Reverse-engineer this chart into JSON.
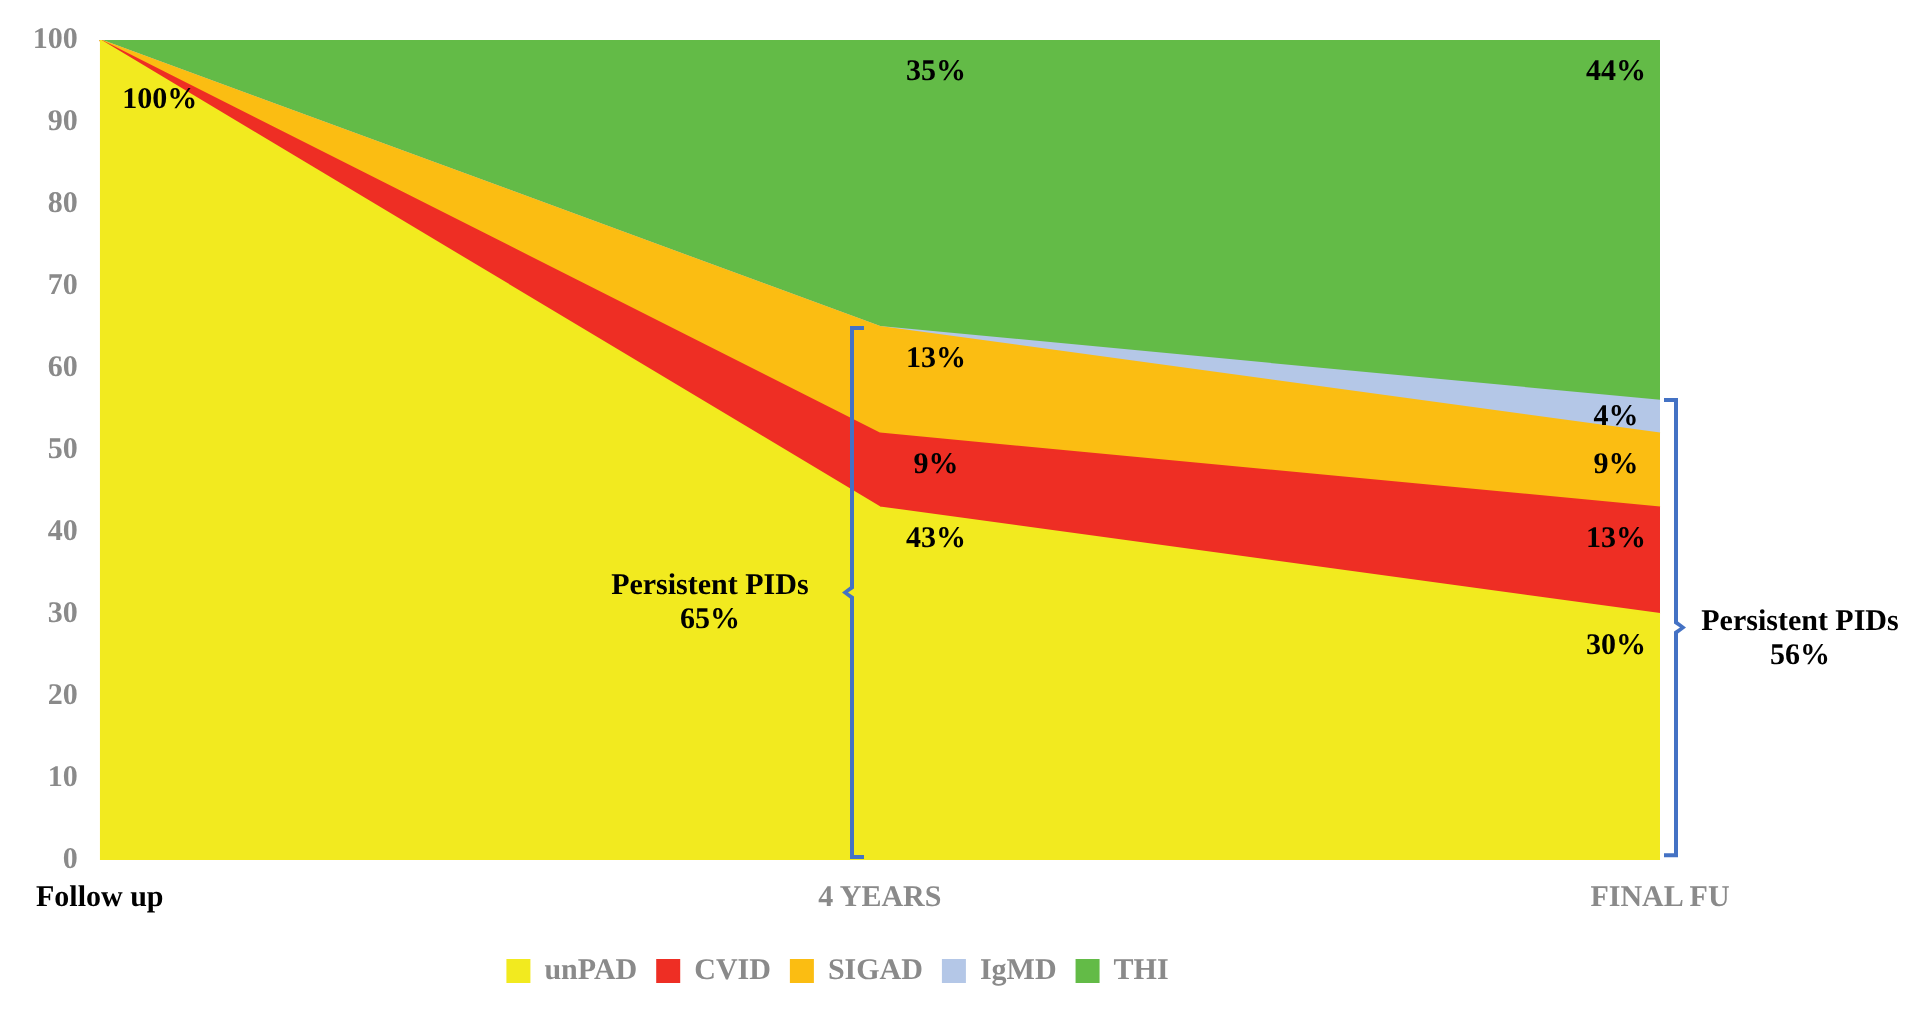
{
  "chart_data": {
    "type": "area",
    "stacked": true,
    "categories": [
      "Follow up",
      "4 YEARS",
      "FINAL FU"
    ],
    "series": [
      {
        "name": "unPAD",
        "color": "#f2ea1f",
        "values": [
          100,
          43,
          30
        ],
        "value_labels": [
          "100%",
          "43%",
          "30%"
        ]
      },
      {
        "name": "CVID",
        "color": "#ee2e24",
        "values": [
          0,
          9,
          13
        ],
        "value_labels": [
          null,
          "9%",
          "13%"
        ]
      },
      {
        "name": "SIGAD",
        "color": "#fbbd12",
        "values": [
          0,
          13,
          9
        ],
        "value_labels": [
          null,
          "13%",
          "9%"
        ]
      },
      {
        "name": "IgMD",
        "color": "#b4c7e7",
        "values": [
          0,
          0,
          4
        ],
        "value_labels": [
          null,
          null,
          "4%"
        ]
      },
      {
        "name": "THI",
        "color": "#63bb47",
        "values": [
          0,
          35,
          44
        ],
        "value_labels": [
          null,
          "35%",
          "44%"
        ]
      }
    ],
    "ylim": [
      0,
      100
    ],
    "yticks": [
      0,
      10,
      20,
      30,
      40,
      50,
      60,
      70,
      80,
      90,
      100
    ],
    "grid": false,
    "legend": "bottom",
    "marker": "none",
    "annotations": [
      "Persistent PIDs 65%",
      "Persistent PIDs 56%"
    ]
  }
}
